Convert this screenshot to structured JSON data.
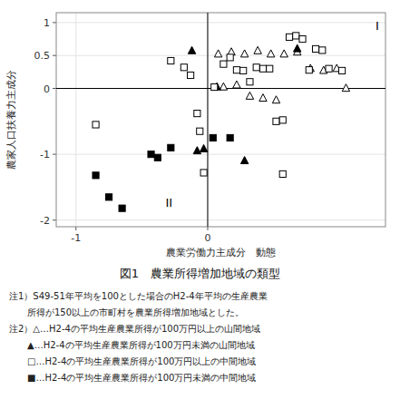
{
  "chart_data": {
    "type": "scatter",
    "title": "図1　農業所得増加地域の類型",
    "x_label": "農業労働力主成分　動態",
    "y_label": "農家人口扶養力主成分",
    "xlim": [
      -1.15,
      1.35
    ],
    "ylim": [
      -2.1,
      1.15
    ],
    "xticks": [
      -1,
      0
    ],
    "yticks": [
      -2,
      -1,
      0,
      0.5,
      1
    ],
    "series": [
      {
        "marker": "open-triangle",
        "color": "#000000",
        "x": [
          0.08,
          0.18,
          0.28,
          0.38,
          0.48,
          0.58,
          0.68,
          0.78,
          0.88,
          0.98,
          1.05,
          0.12,
          0.22,
          0.32,
          0.42,
          0.52
        ],
        "values": [
          0.52,
          0.55,
          0.52,
          0.57,
          0.52,
          0.52,
          0.55,
          0.3,
          0.27,
          0.3,
          0.0,
          0.02,
          0.05,
          -0.12,
          -0.15,
          -0.18
        ]
      },
      {
        "marker": "triangle",
        "color": "#000000",
        "x": [
          -0.12,
          -0.08,
          -0.03,
          0.68,
          0.07,
          0.28
        ],
        "values": [
          0.57,
          -0.95,
          -0.92,
          0.6,
          0.02,
          -1.1
        ]
      },
      {
        "marker": "open-square",
        "color": "#000000",
        "x": [
          -0.85,
          -0.28,
          -0.18,
          -0.13,
          -0.08,
          -0.06,
          -0.03,
          0.05,
          0.12,
          0.17,
          0.22,
          0.27,
          0.32,
          0.37,
          0.42,
          0.47,
          0.52,
          0.57,
          0.62,
          0.67,
          0.72,
          0.77,
          0.82,
          0.87,
          0.92,
          1.02,
          0.57
        ],
        "values": [
          -0.55,
          0.42,
          0.32,
          0.2,
          -0.38,
          -0.65,
          -1.28,
          0.02,
          0.37,
          0.47,
          0.28,
          0.27,
          0.1,
          0.32,
          0.3,
          0.3,
          -0.5,
          -0.48,
          0.78,
          0.8,
          0.75,
          0.28,
          0.6,
          0.58,
          0.3,
          0.27,
          -1.3
        ]
      },
      {
        "marker": "square",
        "color": "#000000",
        "x": [
          -0.85,
          -0.75,
          -0.65,
          -0.43,
          -0.38,
          -0.28,
          0.04,
          0.17
        ],
        "values": [
          -1.32,
          -1.65,
          -1.82,
          -1.0,
          -1.05,
          -0.9,
          -0.75,
          -0.75
        ]
      }
    ],
    "annotations": [
      {
        "text": "I",
        "x": 1.3,
        "y": 1.05
      },
      {
        "text": "II",
        "x": -0.32,
        "y": -1.82
      }
    ],
    "notes": [
      "注1）S49-51年平均を100とした場合のH2-4年平均の生産農業",
      "　　所得が150以上の市町村を農業所得増加地域とした。",
      "注2）△…H2-4の平均生産農業所得が100万円以上の山間地域",
      "　　▲…H2-4の平均生産農業所得が100万円未満の山間地域",
      "　　□…H2-4の平均生産農業所得が100万円以上の中間地域",
      "　　■…H2-4の平均生産農業所得が100万円未満の中間地域"
    ]
  }
}
